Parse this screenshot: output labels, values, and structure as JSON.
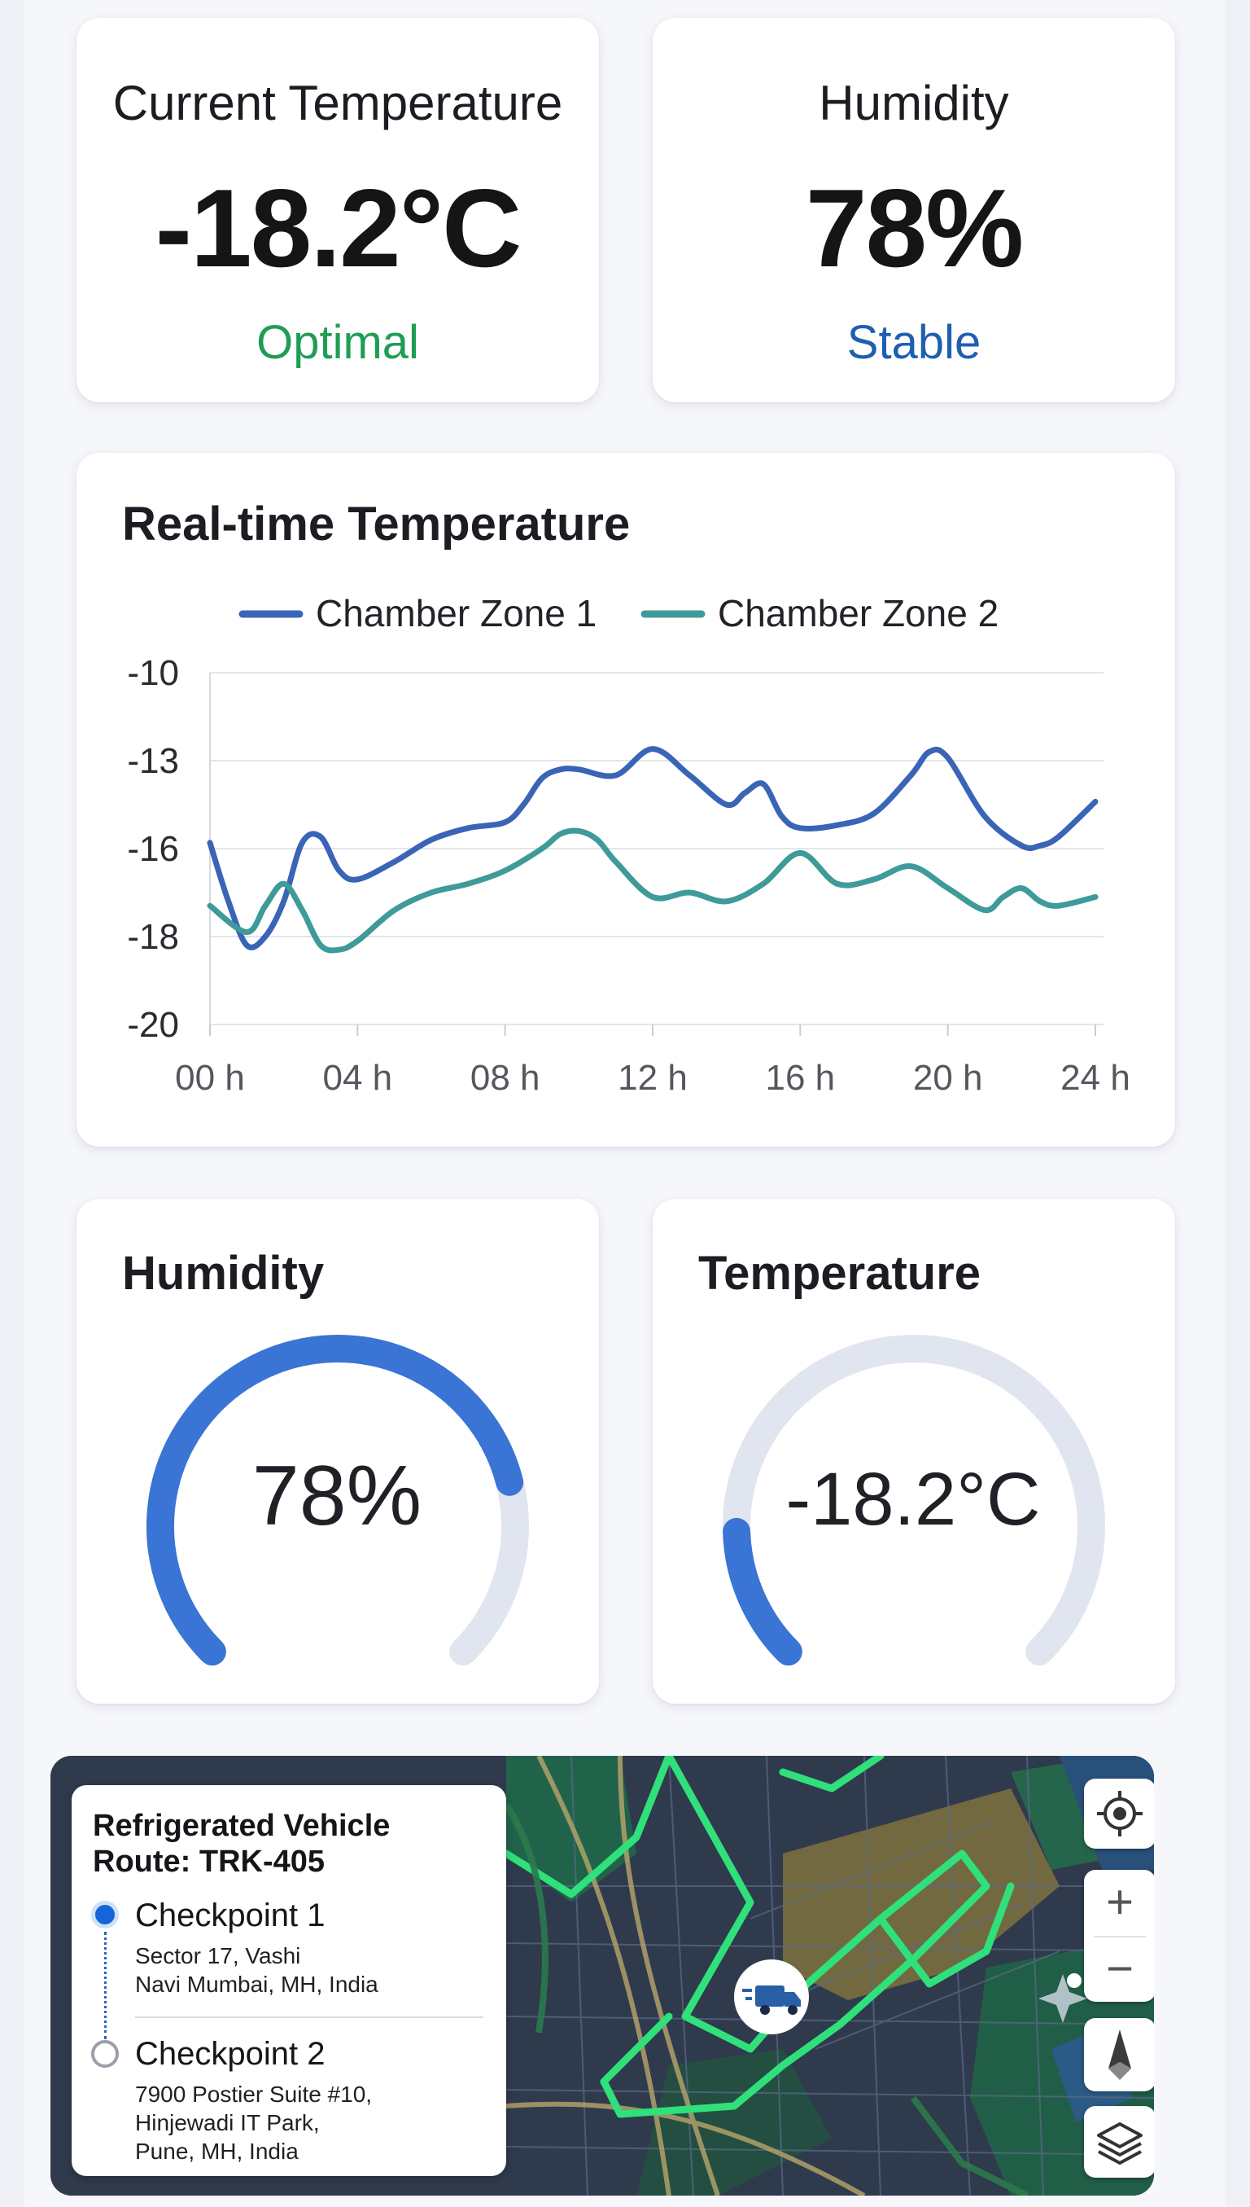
{
  "stats": {
    "temperature": {
      "label": "Current Temperature",
      "value": "-18.2°C",
      "status": "Optimal",
      "status_color": "#1f9d55"
    },
    "humidity": {
      "label": "Humidity",
      "value": "78%",
      "status": "Stable",
      "status_color": "#1f5fb0"
    }
  },
  "chart_card": {
    "title": "Real-time Temperature"
  },
  "chart_data": {
    "type": "line",
    "title": "Real-time Temperature",
    "x_ticks": [
      "00 h",
      "04 h",
      "08 h",
      "12 h",
      "16 h",
      "20 h",
      "24 h"
    ],
    "y_ticks": [
      "-10",
      "-13",
      "-16",
      "-18",
      "-20"
    ],
    "legend_position": "top",
    "grid": true,
    "series": [
      {
        "name": "Chamber Zone 1",
        "color": "#3a64b6",
        "x": [
          0,
          0.5,
          1,
          1.5,
          2,
          2.5,
          3,
          3.5,
          4,
          5,
          6,
          7,
          8,
          8.5,
          9,
          9.5,
          10,
          11,
          12,
          13,
          14,
          14.5,
          15,
          15.5,
          16,
          17,
          18,
          19,
          19.5,
          20,
          21,
          22,
          22.5,
          23,
          24
        ],
        "y": [
          -15.8,
          -17.2,
          -18.2,
          -18.0,
          -17.2,
          -15.8,
          -15.6,
          -16.5,
          -16.7,
          -16.3,
          -15.7,
          -15.3,
          -15.1,
          -14.5,
          -13.6,
          -13.3,
          -13.3,
          -13.5,
          -12.6,
          -13.5,
          -14.5,
          -14.1,
          -13.8,
          -14.9,
          -15.3,
          -15.2,
          -14.8,
          -13.5,
          -12.7,
          -12.9,
          -14.9,
          -15.9,
          -15.9,
          -15.6,
          -14.4
        ]
      },
      {
        "name": "Chamber Zone 2",
        "color": "#3f9a9a",
        "x": [
          0,
          1,
          1.5,
          2,
          2.5,
          3,
          3.5,
          4,
          5,
          6,
          7,
          8,
          9,
          9.5,
          10,
          10.5,
          11,
          12,
          13,
          14,
          15,
          16,
          17,
          18,
          19,
          20,
          21,
          21.5,
          22,
          22.5,
          23,
          24
        ],
        "y": [
          -17.3,
          -17.9,
          -17.3,
          -16.8,
          -17.4,
          -18.2,
          -18.3,
          -18.1,
          -17.4,
          -17.0,
          -16.8,
          -16.5,
          -16.0,
          -15.5,
          -15.4,
          -15.7,
          -16.3,
          -17.1,
          -17.0,
          -17.2,
          -16.8,
          -16.1,
          -16.8,
          -16.7,
          -16.4,
          -16.9,
          -17.4,
          -17.1,
          -16.9,
          -17.2,
          -17.3,
          -17.1
        ]
      }
    ]
  },
  "gauges": {
    "humidity": {
      "title": "Humidity",
      "value_label": "78%",
      "fraction": 0.78,
      "color": "#3a74d4"
    },
    "temperature": {
      "title": "Temperature",
      "value_label": "-18.2°C",
      "fraction": 0.16,
      "color": "#3a74d4"
    }
  },
  "map": {
    "route_title": "Refrigerated Vehicle Route: TRK-405",
    "checkpoints": [
      {
        "name": "Checkpoint 1",
        "address": [
          "Sector 17, Vashi",
          "Navi Mumbai, MH, India"
        ]
      },
      {
        "name": "Checkpoint 2",
        "address": [
          "7900 Postier Suite #10,",
          "Hinjewadi IT Park,",
          "Pune, MH, India"
        ]
      }
    ],
    "controls": [
      "locate-icon",
      "zoom-in-icon",
      "zoom-out-icon",
      "compass-icon",
      "layers-icon"
    ],
    "zoom_in_symbol": "+",
    "zoom_out_symbol": "−"
  }
}
